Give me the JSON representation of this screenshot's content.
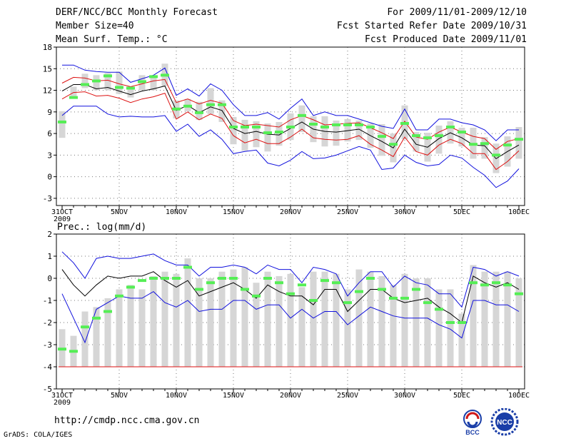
{
  "header": {
    "title": "DERF/NCC/BCC Monthly Forecast",
    "member_size": "Member Size=40",
    "variable": "Mean Surf. Temp.: °C",
    "period": "For 2009/11/01-2009/12/10",
    "started": "Fcst Started Refer Date 2009/10/31",
    "produced": "Fcst Produced Date 2009/11/01"
  },
  "footer": {
    "url": "http://cmdp.ncc.cma.gov.cn",
    "credit": "GrADS: COLA/IGES",
    "logo_bcc": "BCC",
    "logo_ncc": "NCC"
  },
  "colors": {
    "upper": "#1010dd",
    "mean": "#000000",
    "spread": "#dd1111",
    "box": "#d6d6d6",
    "median": "#55ee55",
    "grid": "#777777"
  },
  "chart_data": [
    {
      "type": "line",
      "title": "Mean Surf. Temp.: °C",
      "x": [
        0,
        1,
        2,
        3,
        4,
        5,
        6,
        7,
        8,
        9,
        10,
        11,
        12,
        13,
        14,
        15,
        16,
        17,
        18,
        19,
        20,
        21,
        22,
        23,
        24,
        25,
        26,
        27,
        28,
        29,
        30,
        31,
        32,
        33,
        34,
        35,
        36,
        37,
        38,
        39,
        40
      ],
      "xtick_positions": [
        0,
        5,
        10,
        15,
        20,
        25,
        30,
        35,
        40
      ],
      "xtick_labels": [
        "31OCT",
        "5NOV",
        "10NOV",
        "15NOV",
        "20NOV",
        "25NOV",
        "30NOV",
        "5DEC",
        "10DEC"
      ],
      "xtick_sublabel": "2009",
      "ylim": [
        -4,
        18
      ],
      "yticks": [
        -3,
        0,
        3,
        6,
        9,
        12,
        15,
        18
      ],
      "series": [
        {
          "name": "upper",
          "values": [
            15.5,
            15.5,
            14.8,
            14.6,
            14.5,
            14.5,
            13.1,
            13.6,
            14.1,
            15.1,
            11.3,
            12.2,
            11.2,
            12.9,
            12.0,
            10.0,
            8.5,
            8.5,
            8.9,
            8.0,
            9.5,
            10.8,
            8.5,
            9.0,
            8.5,
            8.5,
            8.0,
            7.5,
            7.0,
            6.7,
            9.4,
            6.5,
            6.5,
            8.0,
            8.0,
            7.5,
            7.2,
            6.5,
            5.0,
            6.5,
            6.5
          ]
        },
        {
          "name": "spread-upper",
          "values": [
            13.0,
            13.8,
            13.7,
            13.3,
            13.4,
            12.9,
            12.5,
            12.9,
            13.3,
            13.5,
            10.3,
            10.8,
            10.1,
            10.6,
            10.2,
            7.8,
            7.1,
            7.3,
            7.1,
            6.9,
            7.9,
            8.5,
            7.9,
            7.2,
            7.3,
            7.4,
            7.5,
            6.8,
            6.1,
            5.3,
            7.7,
            5.5,
            5.2,
            6.2,
            6.9,
            6.2,
            5.6,
            5.3,
            3.8,
            4.9,
            5.3
          ]
        },
        {
          "name": "mean",
          "values": [
            11.9,
            12.8,
            12.8,
            12.2,
            12.4,
            11.9,
            11.4,
            11.9,
            12.2,
            12.6,
            9.2,
            9.9,
            8.9,
            9.7,
            9.2,
            6.7,
            6.0,
            6.3,
            5.9,
            5.8,
            6.7,
            7.6,
            6.6,
            6.3,
            6.2,
            6.4,
            6.6,
            5.7,
            4.9,
            4.0,
            6.6,
            4.5,
            4.1,
            5.3,
            6.1,
            5.4,
            4.4,
            4.3,
            2.5,
            3.5,
            4.4
          ]
        },
        {
          "name": "spread-lower",
          "values": [
            10.8,
            11.7,
            11.8,
            11.2,
            11.3,
            10.9,
            10.3,
            10.8,
            11.1,
            11.6,
            8.0,
            9.0,
            7.9,
            8.7,
            8.1,
            5.7,
            4.7,
            5.2,
            4.6,
            4.6,
            5.5,
            6.6,
            5.4,
            5.2,
            5.1,
            5.2,
            5.7,
            4.5,
            3.7,
            2.8,
            5.5,
            3.5,
            3.0,
            4.4,
            5.2,
            4.6,
            3.2,
            3.2,
            1.0,
            2.1,
            3.6
          ]
        },
        {
          "name": "lower",
          "values": [
            8.5,
            9.8,
            9.8,
            9.8,
            8.7,
            8.3,
            8.4,
            8.3,
            8.3,
            8.5,
            6.3,
            7.3,
            5.6,
            6.5,
            5.2,
            3.2,
            3.5,
            3.7,
            1.9,
            1.5,
            2.3,
            3.5,
            2.5,
            2.6,
            3.0,
            3.6,
            4.2,
            3.7,
            1.0,
            1.2,
            3.0,
            2.0,
            1.5,
            1.7,
            3.0,
            2.6,
            1.3,
            0.2,
            -1.5,
            -0.6,
            1.1
          ]
        }
      ],
      "boxes": {
        "x": [
          0,
          1,
          2,
          3,
          4,
          5,
          6,
          7,
          8,
          9,
          10,
          11,
          12,
          13,
          14,
          15,
          16,
          17,
          18,
          19,
          20,
          21,
          22,
          23,
          24,
          25,
          26,
          27,
          28,
          29,
          30,
          31,
          32,
          33,
          34,
          35,
          36,
          37,
          38,
          39,
          40
        ],
        "low": [
          5.4,
          11.0,
          12.3,
          12.0,
          12.0,
          11.5,
          11.0,
          12.0,
          12.0,
          12.6,
          8.1,
          9.1,
          7.9,
          8.7,
          7.6,
          4.5,
          3.6,
          4.1,
          3.5,
          4.3,
          5.1,
          6.2,
          4.8,
          4.2,
          4.3,
          4.9,
          5.1,
          4.0,
          2.9,
          2.0,
          5.2,
          3.5,
          2.1,
          3.2,
          4.6,
          4.2,
          2.5,
          2.5,
          0.5,
          1.4,
          2.5
        ],
        "high": [
          9.1,
          12.5,
          14.3,
          14.1,
          14.4,
          14.6,
          12.5,
          14.1,
          14.1,
          15.7,
          10.6,
          10.8,
          10.4,
          12.3,
          10.6,
          8.3,
          7.9,
          7.7,
          7.4,
          7.6,
          8.8,
          9.9,
          8.4,
          8.4,
          7.8,
          8.0,
          7.8,
          7.4,
          7.3,
          6.0,
          9.9,
          6.2,
          6.1,
          7.1,
          7.7,
          6.8,
          6.8,
          5.5,
          4.6,
          5.6,
          6.9
        ],
        "median": [
          7.6,
          11.0,
          12.8,
          13.3,
          14.0,
          12.4,
          12.3,
          13.2,
          13.9,
          14.1,
          9.4,
          9.8,
          8.9,
          10.0,
          10.0,
          6.9,
          6.9,
          6.9,
          6.1,
          6.2,
          6.9,
          8.5,
          7.3,
          6.9,
          7.2,
          7.2,
          7.2,
          6.9,
          5.6,
          4.5,
          7.4,
          5.7,
          5.4,
          5.7,
          6.9,
          6.2,
          4.5,
          4.6,
          3.0,
          4.4,
          5.2
        ]
      }
    },
    {
      "type": "line",
      "title": "Prec.: log(mm/d)",
      "x": [
        0,
        1,
        2,
        3,
        4,
        5,
        6,
        7,
        8,
        9,
        10,
        11,
        12,
        13,
        14,
        15,
        16,
        17,
        18,
        19,
        20,
        21,
        22,
        23,
        24,
        25,
        26,
        27,
        28,
        29,
        30,
        31,
        32,
        33,
        34,
        35,
        36,
        37,
        38,
        39,
        40
      ],
      "xtick_positions": [
        0,
        5,
        10,
        15,
        20,
        25,
        30,
        35,
        40
      ],
      "xtick_labels": [
        "31OCT",
        "5NOV",
        "10NOV",
        "15NOV",
        "20NOV",
        "25NOV",
        "30NOV",
        "5DEC",
        "10DEC"
      ],
      "xtick_sublabel": "2009",
      "ylim": [
        -5,
        2
      ],
      "yticks": [
        -5,
        -4,
        -3,
        -2,
        -1,
        0,
        1,
        2
      ],
      "series": [
        {
          "name": "upper",
          "values": [
            1.2,
            0.7,
            0.0,
            0.9,
            1.0,
            0.9,
            0.9,
            1.0,
            1.1,
            0.8,
            0.6,
            0.6,
            0.1,
            0.5,
            0.5,
            0.6,
            0.5,
            0.2,
            0.6,
            0.4,
            0.4,
            -0.2,
            0.5,
            0.4,
            0.2,
            -0.8,
            -0.2,
            0.3,
            0.3,
            -0.4,
            0.1,
            -0.2,
            -0.3,
            -0.7,
            -0.7,
            -1.3,
            0.5,
            0.4,
            0.1,
            0.3,
            0.1
          ]
        },
        {
          "name": "mean",
          "values": [
            0.4,
            -0.3,
            -0.8,
            -0.3,
            0.1,
            0.0,
            0.1,
            0.1,
            0.3,
            -0.1,
            -0.4,
            -0.1,
            -0.8,
            -0.6,
            -0.4,
            -0.2,
            -0.5,
            -0.9,
            -0.3,
            -0.6,
            -0.8,
            -0.8,
            -1.2,
            -0.5,
            -0.5,
            -1.5,
            -1.0,
            -0.5,
            -0.5,
            -0.9,
            -1.1,
            -1.0,
            -0.9,
            -1.3,
            -1.6,
            -2.0,
            0.1,
            -0.2,
            -0.4,
            -0.2,
            -0.5
          ]
        },
        {
          "name": "lower",
          "values": [
            -0.7,
            -1.8,
            -2.9,
            -1.4,
            -1.1,
            -0.8,
            -0.9,
            -0.9,
            -0.6,
            -1.1,
            -1.3,
            -1.0,
            -1.5,
            -1.4,
            -1.4,
            -1.0,
            -1.0,
            -1.4,
            -1.2,
            -1.2,
            -1.8,
            -1.4,
            -1.8,
            -1.5,
            -1.5,
            -2.1,
            -1.7,
            -1.3,
            -1.5,
            -1.7,
            -1.8,
            -1.8,
            -1.8,
            -2.1,
            -2.3,
            -2.7,
            -1.0,
            -1.0,
            -1.2,
            -1.2,
            -1.5
          ]
        }
      ],
      "baseline": -4,
      "boxes": {
        "x": [
          0,
          1,
          2,
          3,
          4,
          5,
          6,
          7,
          8,
          9,
          10,
          11,
          12,
          13,
          14,
          15,
          16,
          17,
          18,
          19,
          20,
          21,
          22,
          23,
          24,
          25,
          26,
          27,
          28,
          29,
          30,
          31,
          32,
          33,
          34,
          35,
          36,
          37,
          38,
          39,
          40
        ],
        "low": [
          -4.0,
          -4.0,
          -4.0,
          -4.0,
          -4.0,
          -4.0,
          -4.0,
          -4.0,
          -4.0,
          -4.0,
          -4.0,
          -4.0,
          -4.0,
          -4.0,
          -4.0,
          -4.0,
          -4.0,
          -4.0,
          -4.0,
          -4.0,
          -4.0,
          -4.0,
          -4.0,
          -4.0,
          -4.0,
          -4.0,
          -4.0,
          -4.0,
          -4.0,
          -4.0,
          -4.0,
          -4.0,
          -4.0,
          -4.0,
          -4.0,
          -4.0,
          -4.0,
          -4.0,
          -4.0,
          -4.0,
          -4.0
        ],
        "high": [
          -2.3,
          -2.6,
          -1.5,
          -1.3,
          -0.9,
          -0.5,
          -0.3,
          -0.5,
          0.1,
          0.3,
          0.2,
          0.9,
          0.0,
          0.0,
          0.3,
          0.4,
          0.5,
          -0.2,
          0.3,
          0.1,
          0.2,
          -0.4,
          0.3,
          0.3,
          0.2,
          -0.5,
          0.4,
          0.3,
          0.1,
          -0.3,
          0.2,
          0.0,
          0.0,
          -0.5,
          -0.5,
          -1.6,
          0.6,
          0.3,
          0.3,
          0.3,
          0.0
        ],
        "median": [
          -3.2,
          -3.3,
          -2.2,
          -1.8,
          -1.5,
          -0.8,
          -0.4,
          -0.1,
          0.0,
          0.0,
          0.0,
          0.5,
          -0.5,
          -0.2,
          0.0,
          0.0,
          -0.5,
          -0.8,
          0.0,
          -0.2,
          -0.7,
          -0.3,
          -1.0,
          -0.1,
          -0.2,
          -1.1,
          -0.6,
          0.0,
          -0.5,
          -0.9,
          -0.9,
          -0.5,
          -1.1,
          -1.4,
          -2.0,
          -2.0,
          -0.2,
          -0.3,
          -0.2,
          -0.3,
          -0.7
        ]
      }
    }
  ]
}
